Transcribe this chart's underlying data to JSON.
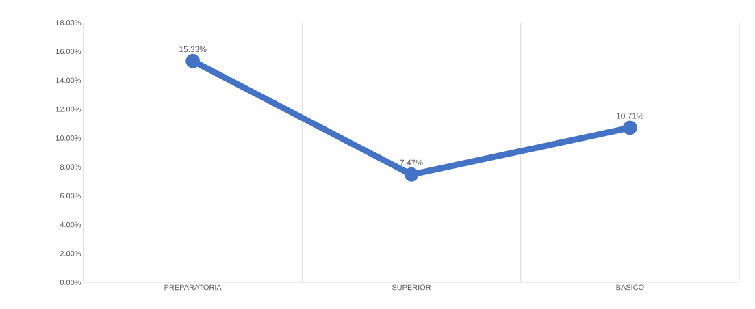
{
  "chart_data": {
    "type": "line",
    "categories": [
      "PREPARATORIA",
      "SUPERIOR",
      "BASICO"
    ],
    "series": [
      {
        "color": "#4472c4",
        "values": [
          15.33,
          7.47,
          10.71
        ],
        "value_labels": [
          "15.33%",
          "7.47%",
          "10.71%"
        ]
      }
    ],
    "ylim": [
      0,
      18
    ],
    "yticks": [
      {
        "value": 0,
        "label": "0.00%"
      },
      {
        "value": 2,
        "label": "2.00%"
      },
      {
        "value": 4,
        "label": "4.00%"
      },
      {
        "value": 6,
        "label": "6.00%"
      },
      {
        "value": 8,
        "label": "8.00%"
      },
      {
        "value": 10,
        "label": "10.00%"
      },
      {
        "value": 12,
        "label": "12.00%"
      },
      {
        "value": 14,
        "label": "14.00%"
      },
      {
        "value": 16,
        "label": "16.00%"
      },
      {
        "value": 18,
        "label": "18.00%"
      }
    ],
    "grid": "x",
    "marker": "circle",
    "line_style": "solid"
  }
}
